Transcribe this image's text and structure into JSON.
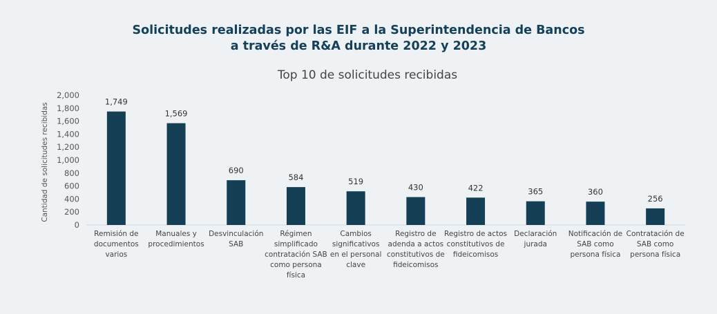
{
  "title_lines": [
    "Solicitudes realizadas por las EIF a la Superintendencia de Bancos",
    "a través de R&A durante 2022 y 2023"
  ],
  "colors": {
    "bar": "#143f55",
    "title": "#14405a",
    "background": "#eef2f4",
    "baseline": "#cfd6da"
  },
  "chart_data": {
    "type": "bar",
    "title": "Top 10 de solicitudes recibidas",
    "ylabel": "Cantidad de solicitudes recibidas",
    "xlabel": "",
    "ylim": [
      0,
      2000
    ],
    "yticks": [
      "0",
      "200",
      "400",
      "600",
      "800",
      "1,000",
      "1,200",
      "1,400",
      "1,600",
      "1,800",
      "2,000"
    ],
    "grid": false,
    "categories": [
      [
        "Remisión de",
        "documentos",
        "varios"
      ],
      [
        "Manuales y",
        "procedimientos"
      ],
      [
        "Desvinculación",
        "SAB"
      ],
      [
        "Régimen",
        "simplificado",
        "contratación SAB",
        "como persona",
        "física"
      ],
      [
        "Cambios",
        "significativos",
        "en el personal",
        "clave"
      ],
      [
        "Registro de",
        "adenda a actos",
        "constitutivos de",
        "fideicomisos"
      ],
      [
        "Registro de actos",
        "constitutivos de",
        "fideicomisos"
      ],
      [
        "Declaración",
        "jurada"
      ],
      [
        "Notificación de",
        "SAB como",
        "persona física"
      ],
      [
        "Contratación de",
        "SAB como",
        "persona física"
      ]
    ],
    "values": [
      1749,
      1569,
      690,
      584,
      519,
      430,
      422,
      365,
      360,
      256
    ],
    "data_labels": [
      "1,749",
      "1,569",
      "690",
      "584",
      "519",
      "430",
      "422",
      "365",
      "360",
      "256"
    ]
  }
}
